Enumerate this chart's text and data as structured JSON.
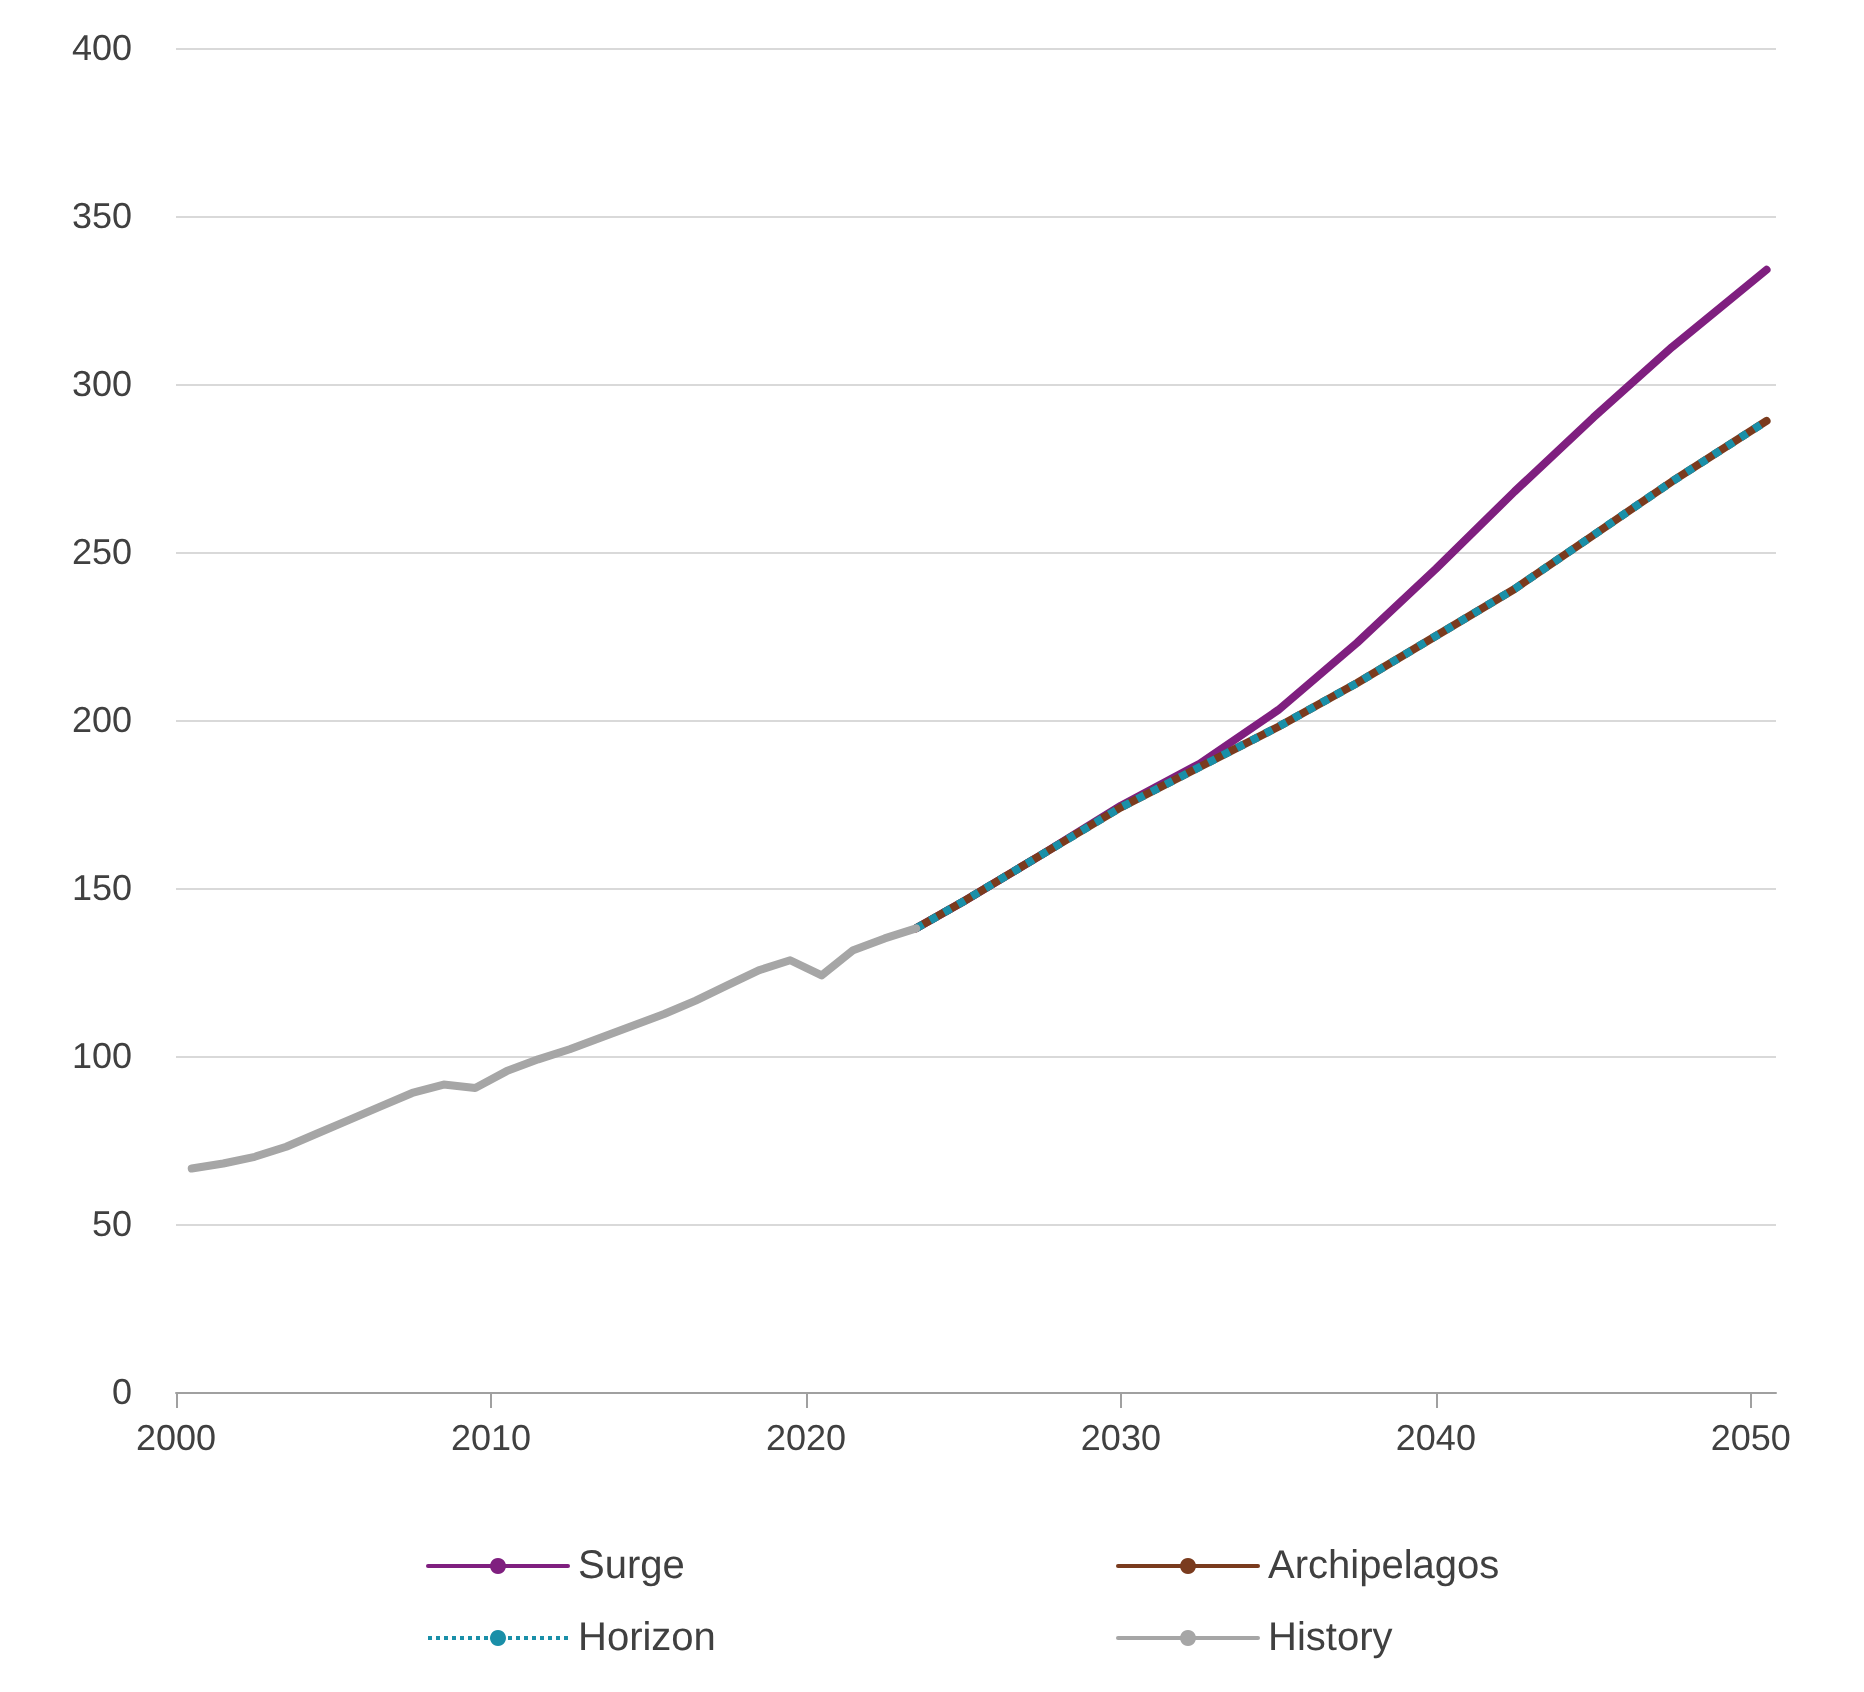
{
  "chart_data": {
    "type": "line",
    "xlim": [
      2000,
      2050.8
    ],
    "xticks": [
      2000,
      2010,
      2020,
      2030,
      2040,
      2050
    ],
    "ylim": [
      0,
      400
    ],
    "yticks": [
      0,
      50,
      100,
      150,
      200,
      250,
      300,
      350,
      400
    ],
    "grid": "y",
    "legend": "bottom",
    "marker": "none",
    "series": [
      {
        "name": "Surge",
        "color": "#7f1f7f",
        "x": [
          2023.5,
          2025,
          2027.5,
          2030,
          2032.5,
          2035,
          2037.5,
          2040,
          2042.5,
          2045,
          2047.5,
          2050.5
        ],
        "values": [
          138,
          146,
          160,
          174.5,
          187,
          203,
          223,
          245,
          268,
          290,
          311,
          334
        ]
      },
      {
        "name": "Archipelagos",
        "color": "#7a3b1e",
        "x": [
          2023.5,
          2025,
          2027.5,
          2030,
          2032.5,
          2035,
          2037.5,
          2040,
          2042.5,
          2045,
          2047.5,
          2050.5
        ],
        "values": [
          138,
          146,
          160,
          174,
          186,
          198,
          211,
          225,
          239,
          255,
          271,
          289
        ]
      },
      {
        "name": "Horizon",
        "color": "#1a8fa8",
        "line_style": "dotted",
        "x": [
          2023.5,
          2025,
          2027.5,
          2030,
          2032.5,
          2035,
          2037.5,
          2040,
          2042.5,
          2045,
          2047.5,
          2050.5
        ],
        "values": [
          138,
          146,
          160,
          174,
          186,
          198,
          211,
          225,
          239,
          255,
          271,
          289
        ]
      },
      {
        "name": "History",
        "color": "#a6a6a6",
        "x": [
          2000.5,
          2001.5,
          2002.5,
          2003.5,
          2004.5,
          2005.5,
          2006.5,
          2007.5,
          2008.5,
          2009.5,
          2010.5,
          2011.5,
          2012.5,
          2013.5,
          2014.5,
          2015.5,
          2016.5,
          2017.5,
          2018.5,
          2019.5,
          2020.5,
          2021.5,
          2022.5,
          2023.5
        ],
        "values": [
          66.5,
          68,
          70,
          73,
          77,
          81,
          85,
          89,
          91.5,
          90.5,
          95.5,
          99,
          102,
          105.5,
          109,
          112.5,
          116.5,
          121,
          125.5,
          128.5,
          124,
          131.5,
          135,
          138
        ]
      }
    ]
  }
}
